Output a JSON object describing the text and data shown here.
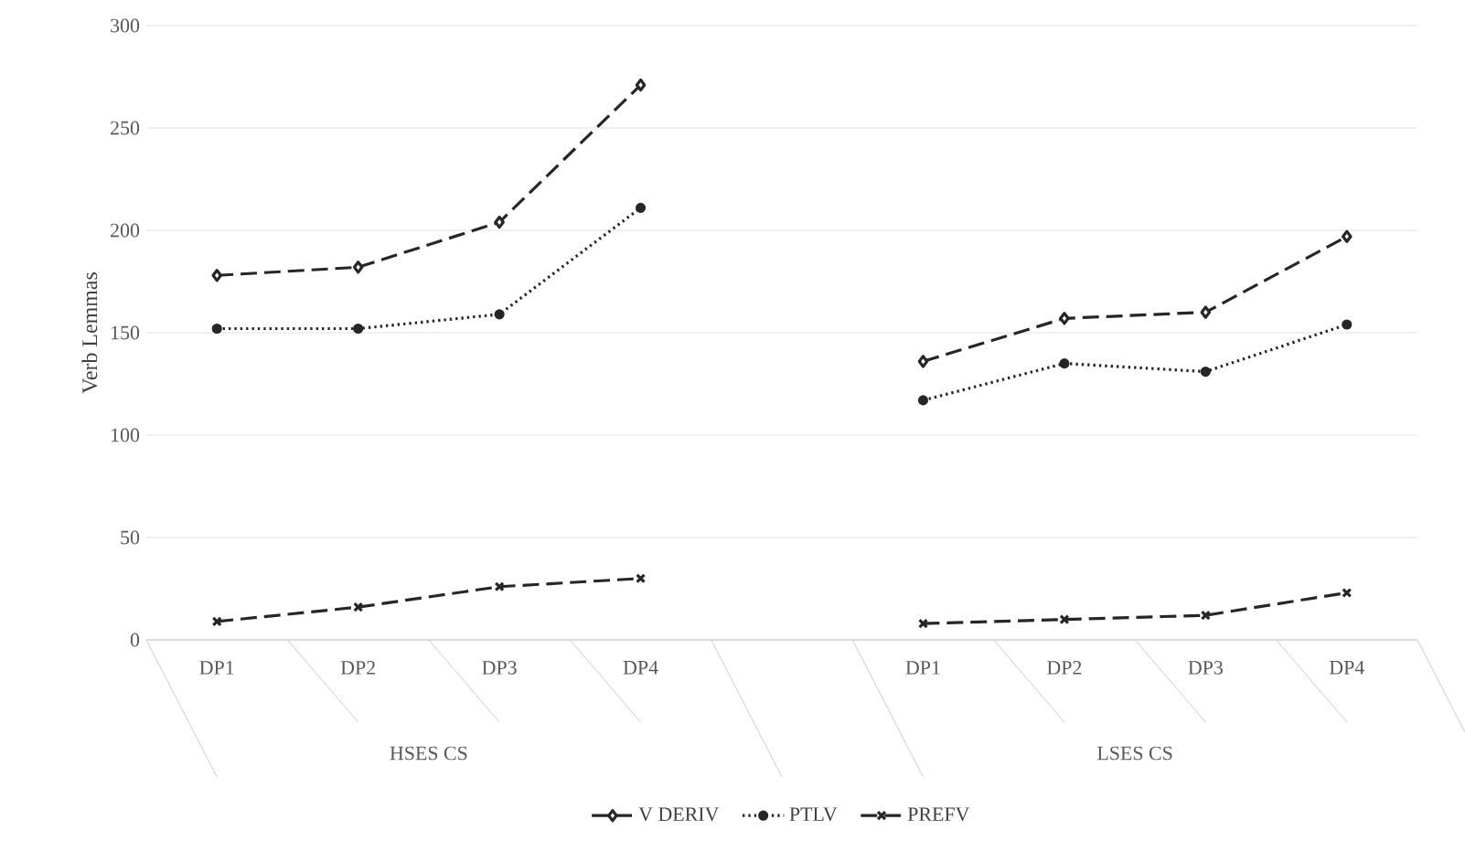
{
  "chart_data": {
    "type": "line",
    "ylabel": "Verb Lemmas",
    "categories": [
      "DP1",
      "DP2",
      "DP3",
      "DP4",
      null,
      "DP1",
      "DP2",
      "DP3",
      "DP4"
    ],
    "annotations": [
      "HSES CS",
      "LSES CS"
    ],
    "series": [
      {
        "name": "V DERIV",
        "color": "#262626",
        "marker": "diamond",
        "line_style": "dashed",
        "values": [
          178,
          182,
          204,
          271,
          null,
          136,
          157,
          160,
          197
        ]
      },
      {
        "name": "PTLV",
        "color": "#262626",
        "marker": "circle",
        "line_style": "dotted",
        "values": [
          152,
          152,
          159,
          211,
          null,
          117,
          135,
          131,
          154
        ]
      },
      {
        "name": "PREFV",
        "color": "#262626",
        "marker": "cross",
        "line_style": "dashed",
        "values": [
          9,
          16,
          26,
          30,
          null,
          8,
          10,
          12,
          23
        ]
      }
    ],
    "ylim": [
      0,
      300
    ],
    "yticks": [
      0,
      50,
      100,
      150,
      200,
      250,
      300
    ],
    "grid": "y",
    "legend": "bottom"
  }
}
